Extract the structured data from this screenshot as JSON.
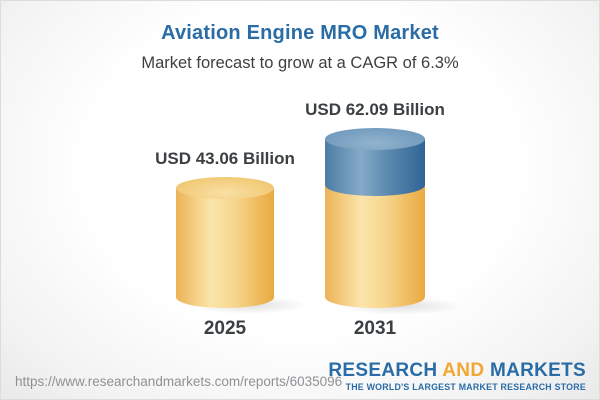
{
  "header": {
    "title": "Aviation Engine MRO Market",
    "subtitle": "Market forecast to grow at a CAGR of 6.3%"
  },
  "chart_data": {
    "type": "bar",
    "variant": "3d-cylinder",
    "title": "Aviation Engine MRO Market",
    "subtitle": "Market forecast to grow at a CAGR of 6.3%",
    "cagr": "6.3%",
    "unit": "USD Billion",
    "categories": [
      "2025",
      "2031"
    ],
    "values": [
      43.06,
      62.09
    ],
    "value_labels": [
      "USD 43.06 Billion",
      "USD 62.09 Billion"
    ],
    "series": [
      {
        "name": "base-value",
        "values": [
          43.06,
          43.06
        ],
        "color": "#f2cd7d"
      },
      {
        "name": "forecast-growth",
        "values": [
          0,
          19.03
        ],
        "color": "#4d7da4"
      }
    ],
    "ylim": [
      0,
      62.09
    ],
    "grid": false,
    "legend": false
  },
  "bars": [
    {
      "year": "2025",
      "label": "USD 43.06 Billion"
    },
    {
      "year": "2031",
      "label": "USD 62.09 Billion"
    }
  ],
  "footer": {
    "url": "https://www.researchandmarkets.com/reports/6035096",
    "logo": {
      "word1": "RESEARCH",
      "word2": "AND",
      "word3": "MARKETS",
      "tagline": "THE WORLD'S LARGEST MARKET RESEARCH STORE"
    }
  },
  "colors": {
    "title_blue": "#2a6ca5",
    "subtitle_gray": "#3d3f42",
    "cylinder_gold": "#f2cd7d",
    "cylinder_blue": "#4d7da4",
    "logo_blue": "#2a6ca5",
    "logo_gold": "#f0a833",
    "url_gray": "#8f9194"
  }
}
